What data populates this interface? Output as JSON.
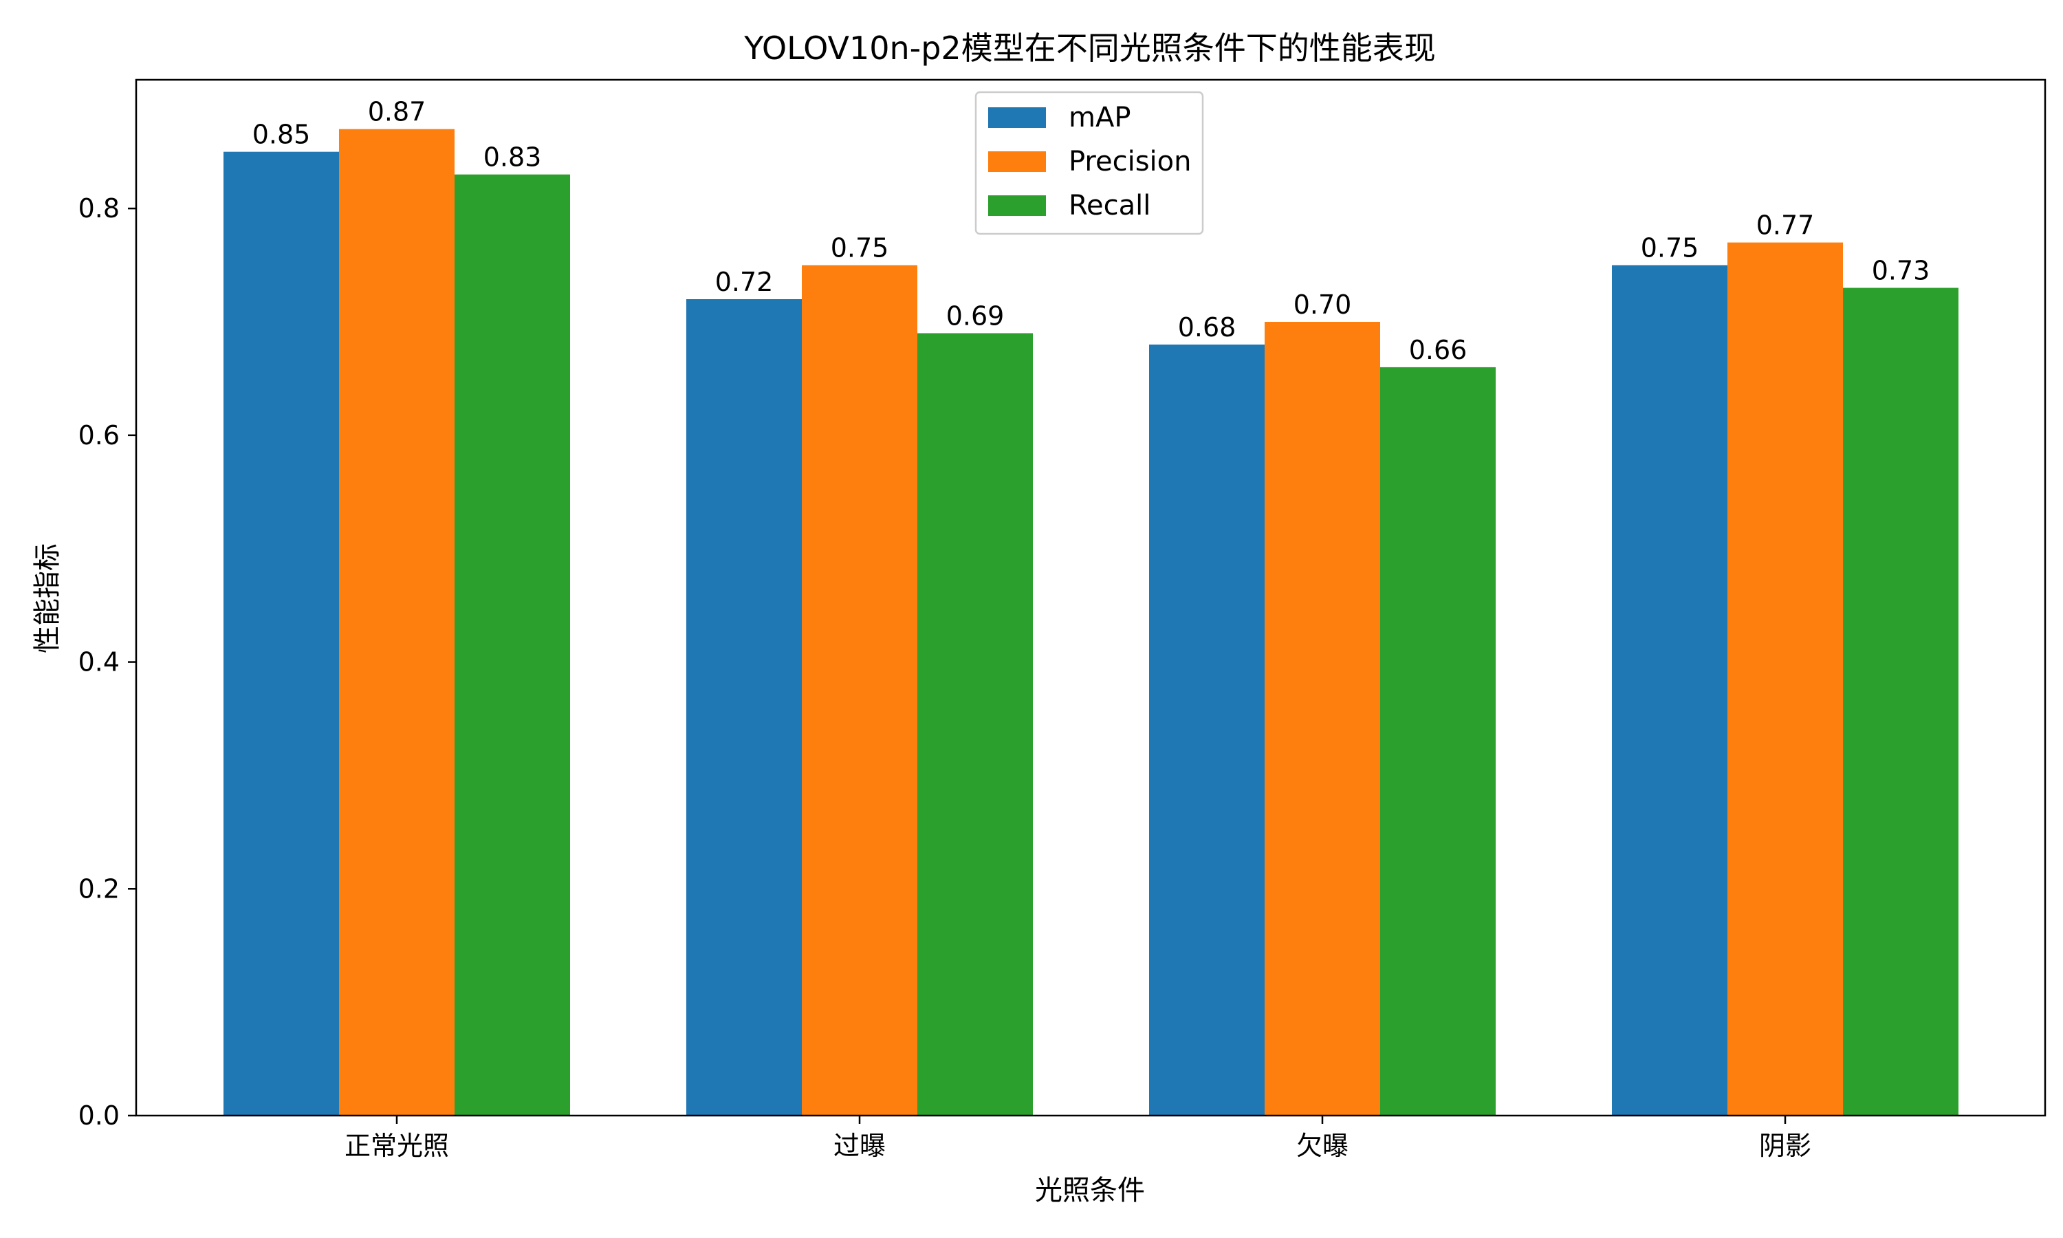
{
  "chart_data": {
    "type": "bar",
    "title": "YOLOV10n-p2模型在不同光照条件下的性能表现",
    "xlabel": "光照条件",
    "ylabel": "性能指标",
    "categories": [
      "正常光照",
      "过曝",
      "欠曝",
      "阴影"
    ],
    "series": [
      {
        "name": "mAP",
        "color": "#1f77b4",
        "values": [
          0.85,
          0.72,
          0.68,
          0.75
        ],
        "labels": [
          "0.85",
          "0.72",
          "0.68",
          "0.75"
        ]
      },
      {
        "name": "Precision",
        "color": "#ff7f0e",
        "values": [
          0.87,
          0.75,
          0.7,
          0.77
        ],
        "labels": [
          "0.87",
          "0.75",
          "0.70",
          "0.77"
        ]
      },
      {
        "name": "Recall",
        "color": "#2ca02c",
        "values": [
          0.83,
          0.69,
          0.66,
          0.73
        ],
        "labels": [
          "0.83",
          "0.69",
          "0.66",
          "0.73"
        ]
      }
    ],
    "ylim": [
      0,
      0.9135
    ],
    "yticks": [
      0.0,
      0.2,
      0.4,
      0.6,
      0.8
    ],
    "ytick_labels": [
      "0.0",
      "0.2",
      "0.4",
      "0.6",
      "0.8"
    ],
    "grid": false,
    "legend_position": "top-center"
  }
}
